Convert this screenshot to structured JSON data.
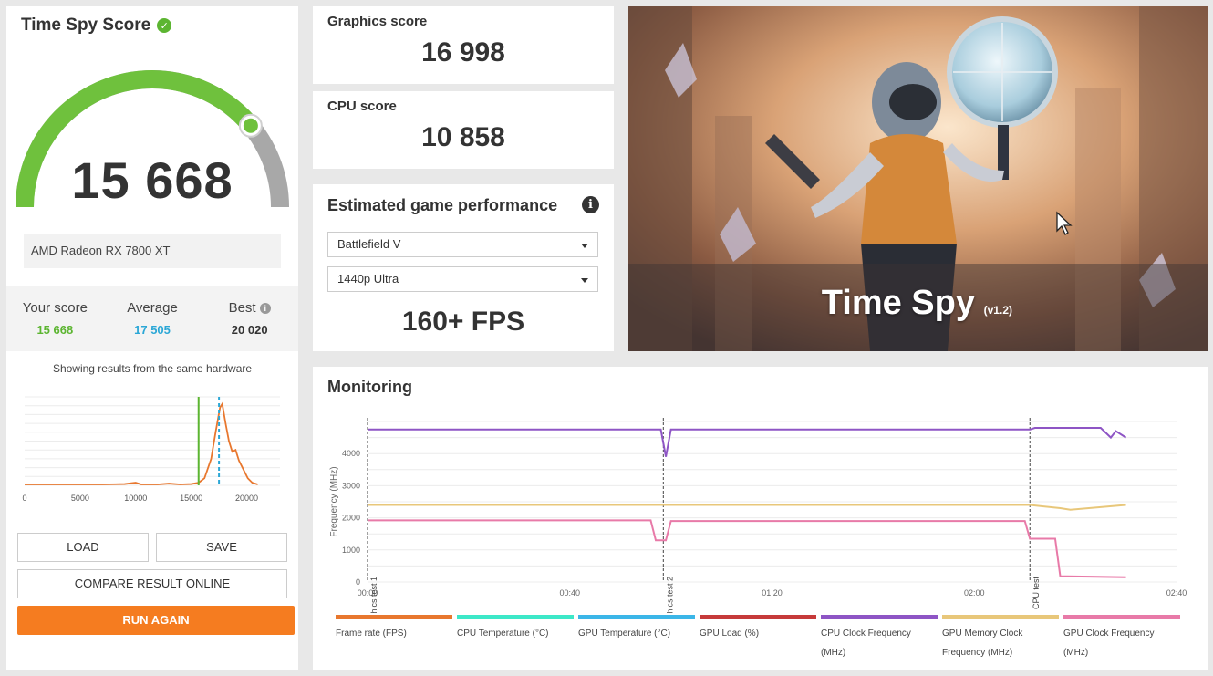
{
  "score_panel": {
    "title": "Time Spy Score",
    "score": "15 668",
    "gauge_fraction": 0.78,
    "gpu": "AMD Radeon RX 7800 XT",
    "stats": {
      "your_score_label": "Your score",
      "your_score": "15 668",
      "average_label": "Average",
      "average": "17 505",
      "best_label": "Best",
      "best": "20 020"
    },
    "same_hw_text": "Showing results from the same hardware",
    "dist_ticks": [
      "0",
      "5000",
      "10000",
      "15000",
      "20000"
    ],
    "buttons": {
      "load": "LOAD",
      "save": "SAVE",
      "compare": "COMPARE RESULT ONLINE",
      "run_again": "RUN AGAIN"
    }
  },
  "graphics": {
    "label": "Graphics score",
    "value": "16 998"
  },
  "cpu": {
    "label": "CPU score",
    "value": "10 858"
  },
  "estimate": {
    "title": "Estimated game performance",
    "game": "Battlefield V",
    "preset": "1440p Ultra",
    "fps": "160+ FPS"
  },
  "hero": {
    "title": "Time Spy",
    "version": "(v1.2)"
  },
  "monitoring": {
    "title": "Monitoring",
    "y_label": "Frequency (MHz)",
    "y_ticks": [
      "0",
      "1000",
      "2000",
      "3000",
      "4000"
    ],
    "x_ticks": [
      "00:00",
      "00:40",
      "01:20",
      "02:00",
      "02:40"
    ],
    "markers": [
      "Graphics test 1",
      "Graphics test 2",
      "CPU test"
    ],
    "legend": [
      {
        "name": "Frame rate (FPS)",
        "color": "#e8772e"
      },
      {
        "name": "CPU Temperature (°C)",
        "color": "#3de8c8"
      },
      {
        "name": "GPU Temperature (°C)",
        "color": "#3bb6e8"
      },
      {
        "name": "GPU Load (%)",
        "color": "#c63a3a"
      },
      {
        "name": "CPU Clock Frequency (MHz)",
        "color": "#8e55c5"
      },
      {
        "name": "GPU Memory Clock Frequency (MHz)",
        "color": "#e8c77a"
      },
      {
        "name": "GPU Clock Frequency (MHz)",
        "color": "#e87aa8"
      }
    ]
  },
  "chart_data": {
    "type": "line",
    "title": "Monitoring",
    "xlabel": "",
    "ylabel": "Frequency (MHz)",
    "xlim": [
      0,
      160
    ],
    "ylim": [
      0,
      5000
    ],
    "grid": true,
    "series": [
      {
        "name": "CPU Clock Frequency (MHz)",
        "x": [
          0,
          40,
          58,
          59,
          60,
          131,
          132,
          145,
          147,
          148,
          150
        ],
        "y": [
          4750,
          4750,
          4750,
          3900,
          4750,
          4750,
          4800,
          4800,
          4500,
          4700,
          4500
        ]
      },
      {
        "name": "GPU Memory Clock Frequency (MHz)",
        "x": [
          0,
          131,
          137,
          139,
          150
        ],
        "y": [
          2400,
          2400,
          2300,
          2250,
          2400
        ]
      },
      {
        "name": "GPU Clock Frequency (MHz)",
        "x": [
          0,
          56,
          57,
          59,
          60,
          130,
          131,
          136,
          137,
          150
        ],
        "y": [
          1920,
          1920,
          1300,
          1300,
          1900,
          1900,
          1350,
          1350,
          180,
          150
        ]
      }
    ]
  }
}
